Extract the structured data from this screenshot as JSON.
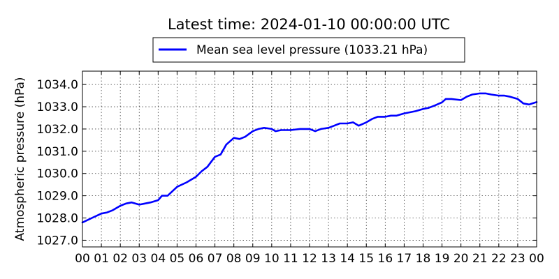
{
  "chart_data": {
    "type": "line",
    "title": "Latest time: 2024-01-10 00:00:00 UTC",
    "xlabel": "",
    "ylabel": "Atmospheric pressure (hPa)",
    "xlim": [
      0,
      24
    ],
    "ylim": [
      1026.7,
      1034.6
    ],
    "x_ticks": [
      "00",
      "01",
      "02",
      "03",
      "04",
      "05",
      "06",
      "07",
      "08",
      "09",
      "10",
      "11",
      "12",
      "13",
      "14",
      "15",
      "16",
      "17",
      "18",
      "19",
      "20",
      "21",
      "22",
      "23",
      "00"
    ],
    "y_ticks": [
      "1027.0",
      "1028.0",
      "1029.0",
      "1030.0",
      "1031.0",
      "1032.0",
      "1033.0",
      "1034.0"
    ],
    "grid": true,
    "legend_position": "top-center, above plot",
    "series": [
      {
        "name": "Mean sea level pressure (1033.21 hPa)",
        "color": "#0000ff",
        "x": [
          0,
          0.5,
          1,
          1.3,
          1.6,
          2,
          2.3,
          2.6,
          3,
          3.3,
          3.6,
          4,
          4.2,
          4.5,
          5,
          5.5,
          6,
          6.3,
          6.6,
          7,
          7.3,
          7.6,
          8,
          8.3,
          8.6,
          9,
          9.3,
          9.6,
          10,
          10.2,
          10.5,
          11,
          11.5,
          12,
          12.3,
          12.6,
          13,
          13.3,
          13.6,
          14,
          14.3,
          14.6,
          15,
          15.3,
          15.6,
          16,
          16.3,
          16.6,
          17,
          17.3,
          17.6,
          18,
          18.3,
          18.6,
          19,
          19.2,
          19.5,
          20,
          20.3,
          20.6,
          21,
          21.3,
          21.6,
          22,
          22.3,
          22.6,
          23,
          23.3,
          23.6,
          24
        ],
        "y": [
          1027.8,
          1028.0,
          1028.2,
          1028.25,
          1028.35,
          1028.55,
          1028.65,
          1028.7,
          1028.6,
          1028.65,
          1028.7,
          1028.8,
          1029.0,
          1029.0,
          1029.4,
          1029.6,
          1029.85,
          1030.1,
          1030.3,
          1030.75,
          1030.85,
          1031.3,
          1031.6,
          1031.55,
          1031.65,
          1031.9,
          1032.0,
          1032.05,
          1032.0,
          1031.9,
          1031.95,
          1031.95,
          1032.0,
          1032.0,
          1031.9,
          1032.0,
          1032.05,
          1032.15,
          1032.25,
          1032.25,
          1032.3,
          1032.15,
          1032.3,
          1032.45,
          1032.55,
          1032.55,
          1032.6,
          1032.6,
          1032.7,
          1032.75,
          1032.8,
          1032.9,
          1032.95,
          1033.05,
          1033.2,
          1033.35,
          1033.35,
          1033.3,
          1033.45,
          1033.55,
          1033.6,
          1033.6,
          1033.55,
          1033.5,
          1033.5,
          1033.45,
          1033.35,
          1033.15,
          1033.1,
          1033.21
        ]
      }
    ]
  }
}
